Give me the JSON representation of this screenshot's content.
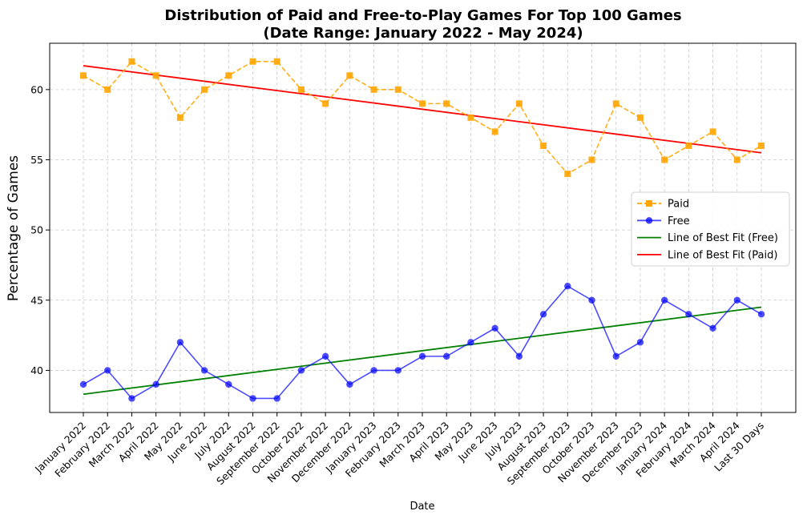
{
  "chart_data": {
    "type": "line",
    "title_line1": "Distribution of Paid and Free-to-Play Games For Top 100 Games",
    "title_line2": "(Date Range: January 2022 - May 2024)",
    "xlabel": "Date",
    "ylabel": "Percentage of Games",
    "ylim": [
      37,
      63.3
    ],
    "yticks": [
      40,
      45,
      50,
      55,
      60
    ],
    "grid": true,
    "legend_position": "center-right",
    "categories": [
      "January 2022",
      "February 2022",
      "March 2022",
      "April 2022",
      "May 2022",
      "June 2022",
      "July 2022",
      "August 2022",
      "September 2022",
      "October 2022",
      "November 2022",
      "December 2022",
      "January 2023",
      "February 2023",
      "March 2023",
      "April 2023",
      "May 2023",
      "June 2023",
      "July 2023",
      "August 2023",
      "September 2023",
      "October 2023",
      "November 2023",
      "December 2023",
      "January 2024",
      "February 2024",
      "March 2024",
      "April 2024",
      "Last 30 Days"
    ],
    "series": [
      {
        "name": "Paid",
        "color": "#ffa500",
        "marker": "square",
        "style": "dashed",
        "values": [
          61,
          60,
          62,
          61,
          58,
          60,
          61,
          62,
          62,
          60,
          59,
          61,
          60,
          60,
          59,
          59,
          58,
          57,
          59,
          56,
          54,
          55,
          59,
          58,
          55,
          56,
          57,
          55,
          56
        ]
      },
      {
        "name": "Free",
        "color": "#0000ff",
        "marker": "circle",
        "style": "solid",
        "values": [
          39,
          40,
          38,
          39,
          42,
          40,
          39,
          38,
          38,
          40,
          41,
          39,
          40,
          40,
          41,
          41,
          42,
          43,
          41,
          44,
          46,
          45,
          41,
          42,
          45,
          44,
          43,
          45,
          44
        ]
      }
    ],
    "fit_lines": [
      {
        "name": "Line of Best Fit (Free)",
        "color": "#008000",
        "start": 38.3,
        "end": 44.5
      },
      {
        "name": "Line of Best Fit (Paid)",
        "color": "#ff0000",
        "start": 61.7,
        "end": 55.5
      }
    ]
  }
}
